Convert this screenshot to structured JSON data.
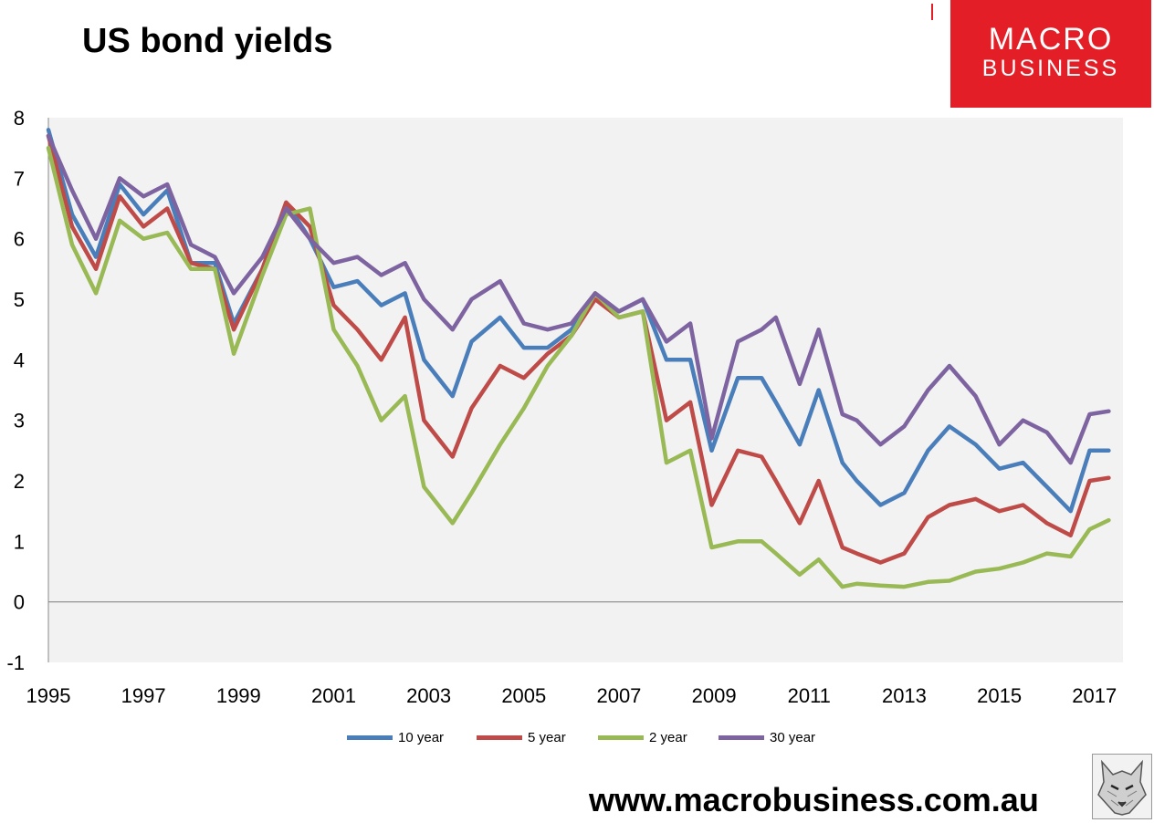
{
  "header": {
    "title": "US bond yields"
  },
  "logo": {
    "line1": "MACRO",
    "line2": "BUSINESS"
  },
  "footer": {
    "url": "www.macrobusiness.com.au",
    "badge_icon": "wolf-icon"
  },
  "chart_data": {
    "type": "line",
    "title": "US bond yields",
    "xlabel": "",
    "ylabel": "",
    "xlim": [
      1995.0,
      2017.6
    ],
    "ylim": [
      -1,
      8
    ],
    "grid": false,
    "plot_background": "#f2f2f2",
    "legend_position": "bottom",
    "x_tick_labels": [
      "1995",
      "1997",
      "1999",
      "2001",
      "2003",
      "2005",
      "2007",
      "2009",
      "2011",
      "2013",
      "2015",
      "2017"
    ],
    "y_tick_labels": [
      "8",
      "7",
      "6",
      "5",
      "4",
      "3",
      "2",
      "1",
      "0",
      "-1"
    ],
    "series": [
      {
        "name": "10 year",
        "color": "#4a7ebb",
        "x": [
          1995.0,
          1995.5,
          1996.0,
          1996.5,
          1997.0,
          1997.5,
          1998.0,
          1998.5,
          1998.9,
          1999.5,
          2000.0,
          2000.5,
          2001.0,
          2001.5,
          2002.0,
          2002.5,
          2002.9,
          2003.5,
          2003.9,
          2004.5,
          2005.0,
          2005.5,
          2006.0,
          2006.5,
          2007.0,
          2007.5,
          2008.0,
          2008.5,
          2008.95,
          2009.5,
          2010.0,
          2010.3,
          2010.8,
          2011.2,
          2011.7,
          2012.0,
          2012.5,
          2013.0,
          2013.5,
          2013.95,
          2014.5,
          2015.0,
          2015.5,
          2016.0,
          2016.5,
          2016.9,
          2017.3
        ],
        "values": [
          7.8,
          6.4,
          5.7,
          6.9,
          6.4,
          6.8,
          5.6,
          5.6,
          4.6,
          5.5,
          6.6,
          6.0,
          5.2,
          5.3,
          4.9,
          5.1,
          4.0,
          3.4,
          4.3,
          4.7,
          4.2,
          4.2,
          4.5,
          5.1,
          4.8,
          5.0,
          4.0,
          4.0,
          2.5,
          3.7,
          3.7,
          3.3,
          2.6,
          3.5,
          2.3,
          2.0,
          1.6,
          1.8,
          2.5,
          2.9,
          2.6,
          2.2,
          2.3,
          1.9,
          1.5,
          2.5,
          2.5
        ]
      },
      {
        "name": "5 year",
        "color": "#be4b48",
        "x": [
          1995.0,
          1995.5,
          1996.0,
          1996.5,
          1997.0,
          1997.5,
          1998.0,
          1998.5,
          1998.9,
          1999.5,
          2000.0,
          2000.5,
          2001.0,
          2001.5,
          2002.0,
          2002.5,
          2002.9,
          2003.5,
          2003.9,
          2004.5,
          2005.0,
          2005.5,
          2006.0,
          2006.5,
          2007.0,
          2007.5,
          2008.0,
          2008.5,
          2008.95,
          2009.5,
          2010.0,
          2010.3,
          2010.8,
          2011.2,
          2011.7,
          2012.0,
          2012.5,
          2013.0,
          2013.5,
          2013.95,
          2014.5,
          2015.0,
          2015.5,
          2016.0,
          2016.5,
          2016.9,
          2017.3
        ],
        "values": [
          7.7,
          6.2,
          5.5,
          6.7,
          6.2,
          6.5,
          5.6,
          5.5,
          4.5,
          5.5,
          6.6,
          6.2,
          4.9,
          4.5,
          4.0,
          4.7,
          3.0,
          2.4,
          3.2,
          3.9,
          3.7,
          4.1,
          4.4,
          5.0,
          4.7,
          4.8,
          3.0,
          3.3,
          1.6,
          2.5,
          2.4,
          2.0,
          1.3,
          2.0,
          0.9,
          0.8,
          0.65,
          0.8,
          1.4,
          1.6,
          1.7,
          1.5,
          1.6,
          1.3,
          1.1,
          2.0,
          2.05
        ]
      },
      {
        "name": "2 year",
        "color": "#98b954",
        "x": [
          1995.0,
          1995.5,
          1996.0,
          1996.5,
          1997.0,
          1997.5,
          1998.0,
          1998.5,
          1998.9,
          1999.5,
          2000.0,
          2000.5,
          2001.0,
          2001.5,
          2002.0,
          2002.5,
          2002.9,
          2003.5,
          2003.9,
          2004.5,
          2005.0,
          2005.5,
          2006.0,
          2006.5,
          2007.0,
          2007.5,
          2008.0,
          2008.5,
          2008.95,
          2009.5,
          2010.0,
          2010.3,
          2010.8,
          2011.2,
          2011.7,
          2012.0,
          2012.5,
          2013.0,
          2013.5,
          2013.95,
          2014.5,
          2015.0,
          2015.5,
          2016.0,
          2016.5,
          2016.9,
          2017.3
        ],
        "values": [
          7.5,
          5.9,
          5.1,
          6.3,
          6.0,
          6.1,
          5.5,
          5.5,
          4.1,
          5.4,
          6.4,
          6.5,
          4.5,
          3.9,
          3.0,
          3.4,
          1.9,
          1.3,
          1.8,
          2.6,
          3.2,
          3.9,
          4.4,
          5.1,
          4.7,
          4.8,
          2.3,
          2.5,
          0.9,
          1.0,
          1.0,
          0.8,
          0.45,
          0.7,
          0.25,
          0.3,
          0.27,
          0.25,
          0.33,
          0.35,
          0.5,
          0.55,
          0.65,
          0.8,
          0.75,
          1.2,
          1.35
        ]
      },
      {
        "name": "30 year",
        "color": "#7e63a1",
        "x": [
          1995.0,
          1995.5,
          1996.0,
          1996.5,
          1997.0,
          1997.5,
          1998.0,
          1998.5,
          1998.9,
          1999.5,
          2000.0,
          2000.5,
          2001.0,
          2001.5,
          2002.0,
          2002.5,
          2002.9,
          2003.5,
          2003.9,
          2004.5,
          2005.0,
          2005.5,
          2006.0,
          2006.5,
          2007.0,
          2007.5,
          2008.0,
          2008.5,
          2008.95,
          2009.5,
          2010.0,
          2010.3,
          2010.8,
          2011.2,
          2011.7,
          2012.0,
          2012.5,
          2013.0,
          2013.5,
          2013.95,
          2014.5,
          2015.0,
          2015.5,
          2016.0,
          2016.5,
          2016.9,
          2017.3
        ],
        "values": [
          7.7,
          6.8,
          6.0,
          7.0,
          6.7,
          6.9,
          5.9,
          5.7,
          5.1,
          5.7,
          6.5,
          6.0,
          5.6,
          5.7,
          5.4,
          5.6,
          5.0,
          4.5,
          5.0,
          5.3,
          4.6,
          4.5,
          4.6,
          5.1,
          4.8,
          5.0,
          4.3,
          4.6,
          2.7,
          4.3,
          4.5,
          4.7,
          3.6,
          4.5,
          3.1,
          3.0,
          2.6,
          2.9,
          3.5,
          3.9,
          3.4,
          2.6,
          3.0,
          2.8,
          2.3,
          3.1,
          3.15
        ]
      }
    ]
  }
}
